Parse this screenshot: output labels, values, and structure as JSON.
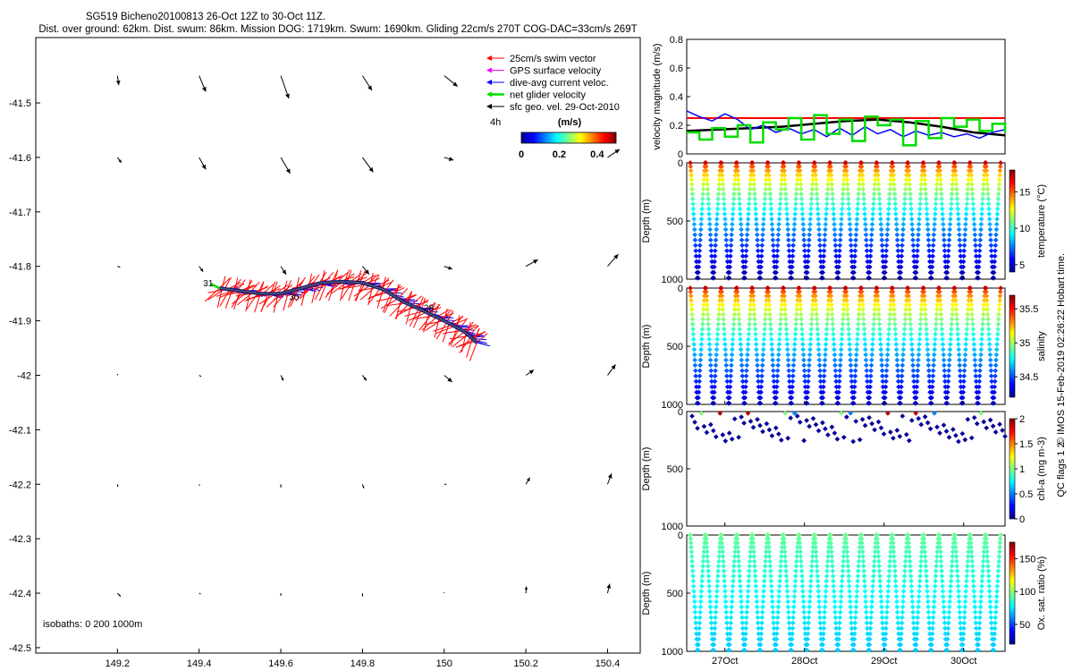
{
  "header": {
    "title_line1": "SG519 Bicheno20100813 26-Oct 12Z to 30-Oct 11Z.",
    "title_line2": "Dist. over ground: 62km. Dist. swum: 86km. Mission DOG: 1719km. Swum: 1690km. Gliding 22cm/s 270T COG-DAC=33cm/s 269T"
  },
  "chart_data": [
    {
      "id": "map",
      "type": "scatter",
      "xticks": [
        "149.2",
        "149.4",
        "149.6",
        "149.8",
        "150",
        "150.2",
        "150.4"
      ],
      "yticks": [
        "-41.5",
        "-41.6",
        "-41.7",
        "-41.8",
        "-41.9",
        "-42",
        "-42.1",
        "-42.2",
        "-42.3",
        "-42.4",
        "-42.5"
      ],
      "xlim": [
        149.0,
        150.48
      ],
      "ylim": [
        -42.51,
        -41.38
      ],
      "legend": {
        "placement": "top-right",
        "items": [
          {
            "label": "25cm/s swim vector",
            "color": "#ff0000"
          },
          {
            "label": "GPS surface velocity",
            "color": "#ff00ff"
          },
          {
            "label": "dive-avg current veloc.",
            "color": "#0000ff"
          },
          {
            "label": "net glider velocity",
            "color": "#00dd00"
          },
          {
            "label": "sfc geo. vel. 29-Oct-2010",
            "color": "#000000"
          }
        ]
      },
      "time_label": "4h",
      "colorbar": {
        "label": "(m/s)",
        "ticks": [
          "0",
          "0.2",
          "0.4"
        ],
        "range": [
          0,
          0.5
        ]
      },
      "track_labels": [
        {
          "text": "31",
          "lon": 149.41,
          "lat": -41.837
        },
        {
          "text": "30",
          "lon": 149.62,
          "lat": -41.862
        },
        {
          "text": "28",
          "lon": 149.95,
          "lat": -41.882
        }
      ],
      "track": {
        "lon": [
          149.45,
          149.5,
          149.55,
          149.6,
          149.65,
          149.7,
          149.75,
          149.8,
          149.85,
          149.9,
          149.95,
          150.0,
          150.05,
          150.08
        ],
        "lat": [
          -41.84,
          -41.845,
          -41.85,
          -41.85,
          -41.84,
          -41.83,
          -41.828,
          -41.83,
          -41.842,
          -41.865,
          -41.882,
          -41.9,
          -41.92,
          -41.94
        ]
      },
      "isobaths_label": "isobaths: 0   200  1000m",
      "geo_vectors": [
        {
          "lon": 149.2,
          "lat": -41.45,
          "u": 0.05,
          "v": -0.35
        },
        {
          "lon": 149.4,
          "lat": -41.45,
          "u": 0.25,
          "v": -0.6
        },
        {
          "lon": 149.6,
          "lat": -41.45,
          "u": 0.3,
          "v": -0.85
        },
        {
          "lon": 149.8,
          "lat": -41.45,
          "u": 0.35,
          "v": -0.55
        },
        {
          "lon": 150.0,
          "lat": -41.45,
          "u": 0.5,
          "v": -0.4
        },
        {
          "lon": 149.2,
          "lat": -41.6,
          "u": 0.15,
          "v": -0.2
        },
        {
          "lon": 149.4,
          "lat": -41.6,
          "u": 0.25,
          "v": -0.45
        },
        {
          "lon": 149.6,
          "lat": -41.6,
          "u": 0.35,
          "v": -0.6
        },
        {
          "lon": 149.8,
          "lat": -41.6,
          "u": 0.4,
          "v": -0.55
        },
        {
          "lon": 150.0,
          "lat": -41.6,
          "u": 0.35,
          "v": -0.1
        },
        {
          "lon": 150.2,
          "lat": -41.6,
          "u": 0.0,
          "v": 0.0
        },
        {
          "lon": 150.4,
          "lat": -41.6,
          "u": 0.45,
          "v": 0.3
        },
        {
          "lon": 149.2,
          "lat": -41.8,
          "u": 0.1,
          "v": -0.03
        },
        {
          "lon": 149.4,
          "lat": -41.8,
          "u": 0.15,
          "v": -0.2
        },
        {
          "lon": 149.6,
          "lat": -41.8,
          "u": 0.2,
          "v": -0.3
        },
        {
          "lon": 149.8,
          "lat": -41.8,
          "u": 0.25,
          "v": -0.3
        },
        {
          "lon": 150.0,
          "lat": -41.8,
          "u": 0.3,
          "v": -0.1
        },
        {
          "lon": 150.2,
          "lat": -41.8,
          "u": 0.45,
          "v": 0.25
        },
        {
          "lon": 150.4,
          "lat": -41.8,
          "u": 0.4,
          "v": 0.45
        },
        {
          "lon": 149.2,
          "lat": -42.0,
          "u": 0.0,
          "v": 0.05
        },
        {
          "lon": 149.4,
          "lat": -42.0,
          "u": 0.08,
          "v": -0.05
        },
        {
          "lon": 149.6,
          "lat": -42.0,
          "u": 0.1,
          "v": -0.2
        },
        {
          "lon": 149.8,
          "lat": -42.0,
          "u": 0.15,
          "v": -0.2
        },
        {
          "lon": 150.0,
          "lat": -42.0,
          "u": 0.3,
          "v": -0.25
        },
        {
          "lon": 150.2,
          "lat": -42.0,
          "u": 0.3,
          "v": 0.2
        },
        {
          "lon": 150.4,
          "lat": -42.0,
          "u": 0.3,
          "v": 0.4
        },
        {
          "lon": 149.2,
          "lat": -42.2,
          "u": 0.02,
          "v": -0.1
        },
        {
          "lon": 149.4,
          "lat": -42.2,
          "u": 0.02,
          "v": -0.05
        },
        {
          "lon": 149.6,
          "lat": -42.2,
          "u": 0.0,
          "v": -0.12
        },
        {
          "lon": 149.8,
          "lat": -42.2,
          "u": 0.05,
          "v": -0.15
        },
        {
          "lon": 150.0,
          "lat": -42.2,
          "u": 0.08,
          "v": 0.0
        },
        {
          "lon": 150.2,
          "lat": -42.2,
          "u": 0.15,
          "v": 0.25
        },
        {
          "lon": 150.4,
          "lat": -42.2,
          "u": 0.15,
          "v": 0.4
        },
        {
          "lon": 149.2,
          "lat": -42.4,
          "u": 0.12,
          "v": -0.12
        },
        {
          "lon": 149.4,
          "lat": -42.4,
          "u": 0.06,
          "v": -0.03
        },
        {
          "lon": 149.6,
          "lat": -42.4,
          "u": 0.0,
          "v": -0.1
        },
        {
          "lon": 149.8,
          "lat": -42.4,
          "u": 0.0,
          "v": -0.12
        },
        {
          "lon": 150.0,
          "lat": -42.4,
          "u": -0.02,
          "v": 0.03
        },
        {
          "lon": 150.2,
          "lat": -42.4,
          "u": 0.02,
          "v": 0.25
        },
        {
          "lon": 150.4,
          "lat": -42.4,
          "u": 0.08,
          "v": 0.35
        }
      ]
    },
    {
      "id": "velocity",
      "type": "line",
      "ylabel": "velocity magnitude (m/s)",
      "yticks": [
        "0",
        "0.2",
        "0.4",
        "0.6",
        "0.8"
      ],
      "ylim": [
        0,
        0.8
      ],
      "xlim": [
        0,
        1
      ],
      "series": [
        {
          "color": "#ff0000",
          "x": [
            0,
            1
          ],
          "y": [
            0.25,
            0.25
          ]
        },
        {
          "color": "#000000",
          "x": [
            0,
            0.1,
            0.2,
            0.3,
            0.4,
            0.5,
            0.6,
            0.7,
            0.8,
            0.9,
            1.0
          ],
          "y": [
            0.16,
            0.17,
            0.18,
            0.19,
            0.21,
            0.23,
            0.24,
            0.22,
            0.19,
            0.15,
            0.13
          ]
        },
        {
          "color": "#0000ff",
          "x": [
            0,
            0.04,
            0.08,
            0.12,
            0.16,
            0.2,
            0.24,
            0.28,
            0.32,
            0.36,
            0.4,
            0.44,
            0.48,
            0.52,
            0.56,
            0.6,
            0.64,
            0.68,
            0.72,
            0.76,
            0.8,
            0.84,
            0.88,
            0.92,
            0.96,
            1.0
          ],
          "y": [
            0.3,
            0.26,
            0.23,
            0.28,
            0.24,
            0.17,
            0.2,
            0.15,
            0.18,
            0.14,
            0.17,
            0.12,
            0.18,
            0.13,
            0.19,
            0.14,
            0.17,
            0.12,
            0.16,
            0.13,
            0.15,
            0.12,
            0.14,
            0.11,
            0.15,
            0.17
          ]
        },
        {
          "color": "#00dd00",
          "x": [
            0,
            0.04,
            0.08,
            0.12,
            0.16,
            0.2,
            0.24,
            0.28,
            0.32,
            0.36,
            0.4,
            0.44,
            0.48,
            0.52,
            0.56,
            0.6,
            0.64,
            0.68,
            0.72,
            0.76,
            0.8,
            0.84,
            0.88,
            0.92,
            0.96,
            1.0
          ],
          "y": [
            0.15,
            0.1,
            0.18,
            0.12,
            0.2,
            0.08,
            0.22,
            0.17,
            0.25,
            0.1,
            0.27,
            0.14,
            0.24,
            0.09,
            0.26,
            0.2,
            0.24,
            0.06,
            0.23,
            0.11,
            0.25,
            0.19,
            0.24,
            0.16,
            0.21,
            0.15
          ]
        }
      ]
    },
    {
      "id": "temperature",
      "type": "scatter",
      "ylabel": "Depth (m)",
      "yticks": [
        "0",
        "500",
        "1000"
      ],
      "ylim": [
        0,
        1000
      ],
      "colorbar": {
        "label": "temperature (°C)",
        "ticks": [
          "5",
          "10",
          "15"
        ],
        "range": [
          4,
          18
        ]
      },
      "value_top": 17,
      "value_bottom": 4.5
    },
    {
      "id": "salinity",
      "type": "scatter",
      "ylabel": "Depth (m)",
      "yticks": [
        "0",
        "500",
        "1000"
      ],
      "ylim": [
        0,
        1000
      ],
      "colorbar": {
        "label": "salinity",
        "ticks": [
          "34.5",
          "35",
          "35.5"
        ],
        "range": [
          34.2,
          35.7
        ]
      },
      "value_top": 35.6,
      "value_bottom": 34.3
    },
    {
      "id": "chla",
      "type": "scatter",
      "ylabel": "Depth (m)",
      "yticks": [
        "0",
        "500",
        "1000"
      ],
      "ylim": [
        0,
        1000
      ],
      "colorbar": {
        "label": "chl-a (mg m-3)",
        "ticks": [
          "0",
          "0.5",
          "1",
          "1.5",
          "2"
        ],
        "range": [
          0,
          2
        ]
      },
      "qc_label": "QC flags 1  2"
    },
    {
      "id": "oxygen",
      "type": "scatter",
      "ylabel": "Depth (m)",
      "yticks": [
        "0",
        "500",
        "1000"
      ],
      "ylim": [
        0,
        1000
      ],
      "xticks": [
        "27Oct",
        "28Oct",
        "29Oct",
        "30Oct"
      ],
      "colorbar": {
        "label": "Ox. sat. ratio (%)",
        "ticks": [
          "50",
          "100",
          "150"
        ],
        "range": [
          20,
          175
        ]
      },
      "value_top": 95,
      "value_bottom": 70
    }
  ],
  "credit": "© IMOS 15-Feb-2019 02:26:22 Hobart time."
}
